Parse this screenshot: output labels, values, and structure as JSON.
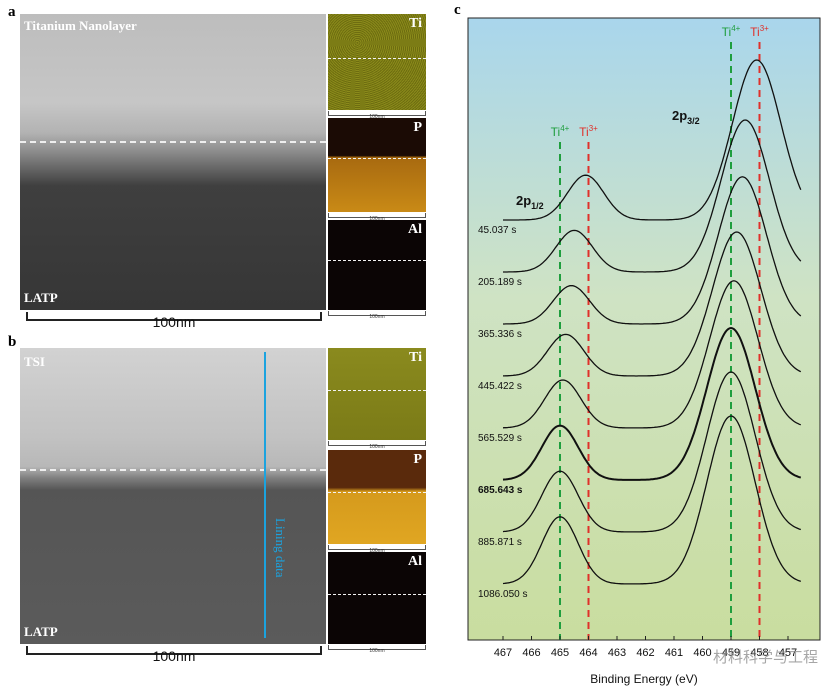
{
  "panels": {
    "a": {
      "letter": "a",
      "stem_top_label": "Titanium Nanolayer",
      "stem_bottom_label": "LATP",
      "scale_label": "100nm",
      "maps": [
        {
          "element": "Ti",
          "scale_label": "100nm"
        },
        {
          "element": "P",
          "scale_label": "100nm"
        },
        {
          "element": "Al",
          "scale_label": "100nm"
        }
      ]
    },
    "b": {
      "letter": "b",
      "stem_top_label": "TSI",
      "stem_bottom_label": "LATP",
      "scale_label": "100nm",
      "line_label": "Lining data",
      "maps": [
        {
          "element": "Ti",
          "scale_label": "100nm"
        },
        {
          "element": "P",
          "scale_label": "100nm"
        },
        {
          "element": "Al",
          "scale_label": "100nm"
        }
      ]
    },
    "c": {
      "letter": "c"
    }
  },
  "chart_data": {
    "type": "line",
    "title": "",
    "xlabel": "Binding Energy (eV)",
    "ylabel": "",
    "x_reversed": true,
    "xlim": [
      467,
      457
    ],
    "x_ticks": [
      467,
      466,
      465,
      464,
      463,
      462,
      461,
      460,
      459,
      458,
      457
    ],
    "x_tick_labels": [
      "467",
      "466",
      "465",
      "464",
      "463",
      "462",
      "461",
      "460",
      "459",
      "458",
      "457"
    ],
    "peak_labels": {
      "p12": {
        "main": "2p",
        "sub": "1/2"
      },
      "p32": {
        "main": "2p",
        "sub": "3/2"
      }
    },
    "reference_lines": [
      {
        "label": "Ti",
        "sup": "4+",
        "x": 465.0,
        "color": "#1f9e3e",
        "group": "2p1/2"
      },
      {
        "label": "Ti",
        "sup": "3+",
        "x": 464.0,
        "color": "#e0302a",
        "group": "2p1/2"
      },
      {
        "label": "Ti",
        "sup": "4+",
        "x": 459.0,
        "color": "#1f9e3e",
        "group": "2p3/2"
      },
      {
        "label": "Ti",
        "sup": "3+",
        "x": 458.0,
        "color": "#e0302a",
        "group": "2p3/2"
      }
    ],
    "series": [
      {
        "name": "45.037 s",
        "bold": false,
        "p12_pos": 464.1,
        "p12_h": 0.28,
        "p32_pos": 458.1,
        "p32_h": 1.0
      },
      {
        "name": "205.189 s",
        "bold": false,
        "p12_pos": 464.5,
        "p12_h": 0.26,
        "p32_pos": 458.5,
        "p32_h": 0.95
      },
      {
        "name": "365.336 s",
        "bold": false,
        "p12_pos": 464.6,
        "p12_h": 0.24,
        "p32_pos": 458.6,
        "p32_h": 0.92
      },
      {
        "name": "445.422 s",
        "bold": false,
        "p12_pos": 464.8,
        "p12_h": 0.26,
        "p32_pos": 458.8,
        "p32_h": 0.9
      },
      {
        "name": "565.529 s",
        "bold": false,
        "p12_pos": 464.9,
        "p12_h": 0.3,
        "p32_pos": 458.9,
        "p32_h": 0.92
      },
      {
        "name": "685.643 s",
        "bold": true,
        "p12_pos": 465.0,
        "p12_h": 0.34,
        "p32_pos": 459.0,
        "p32_h": 0.95
      },
      {
        "name": "885.871 s",
        "bold": false,
        "p12_pos": 465.0,
        "p12_h": 0.38,
        "p32_pos": 459.0,
        "p32_h": 1.0
      },
      {
        "name": "1086.050 s",
        "bold": false,
        "p12_pos": 465.0,
        "p12_h": 0.42,
        "p32_pos": 459.0,
        "p32_h": 1.05
      }
    ],
    "background_gradient": [
      "#a9d6ec",
      "#cfe3c4",
      "#c9dd9f"
    ]
  },
  "watermark": "材料科学与工程"
}
